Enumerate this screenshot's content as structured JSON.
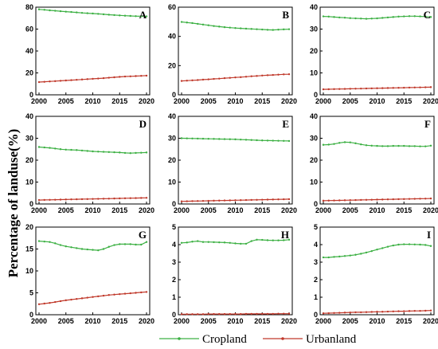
{
  "figure": {
    "ylabel": "Percentage of landuse(%)",
    "legend": [
      {
        "name": "Cropland",
        "color": "#3cb043"
      },
      {
        "name": "Urbanland",
        "color": "#c0392b"
      }
    ]
  },
  "chart_data": [
    {
      "type": "line",
      "panel": "A",
      "x": [
        2000,
        2001,
        2002,
        2003,
        2004,
        2005,
        2006,
        2007,
        2008,
        2009,
        2010,
        2011,
        2012,
        2013,
        2014,
        2015,
        2016,
        2017,
        2018,
        2019,
        2020
      ],
      "xticks": [
        2000,
        2005,
        2010,
        2015,
        2020
      ],
      "ylim": [
        0,
        80
      ],
      "yticks": [
        0,
        20,
        40,
        60,
        80
      ],
      "series": [
        {
          "name": "Cropland",
          "values": [
            78,
            77.6,
            77.1,
            76.7,
            76.3,
            75.9,
            75.6,
            75.2,
            74.8,
            74.5,
            74.2,
            73.9,
            73.5,
            73.1,
            72.8,
            72.5,
            72.2,
            72.0,
            71.8,
            71.7,
            71.6
          ]
        },
        {
          "name": "Urbanland",
          "values": [
            11.6,
            11.9,
            12.2,
            12.5,
            12.8,
            13.1,
            13.4,
            13.7,
            14.0,
            14.3,
            14.6,
            14.9,
            15.2,
            15.6,
            16.0,
            16.4,
            16.7,
            16.9,
            17.1,
            17.3,
            17.5
          ]
        }
      ]
    },
    {
      "type": "line",
      "panel": "B",
      "x": [
        2000,
        2001,
        2002,
        2003,
        2004,
        2005,
        2006,
        2007,
        2008,
        2009,
        2010,
        2011,
        2012,
        2013,
        2014,
        2015,
        2016,
        2017,
        2018,
        2019,
        2020
      ],
      "xticks": [
        2000,
        2005,
        2010,
        2015,
        2020
      ],
      "ylim": [
        0,
        60
      ],
      "yticks": [
        0,
        20,
        40,
        60
      ],
      "series": [
        {
          "name": "Cropland",
          "values": [
            49.9,
            49.5,
            49.1,
            48.6,
            48.1,
            47.6,
            47.1,
            46.7,
            46.3,
            46.0,
            45.7,
            45.5,
            45.3,
            45.1,
            44.9,
            44.7,
            44.5,
            44.4,
            44.6,
            44.8,
            44.9
          ]
        },
        {
          "name": "Urbanland",
          "values": [
            9.5,
            9.7,
            9.9,
            10.1,
            10.4,
            10.6,
            10.9,
            11.1,
            11.4,
            11.6,
            11.9,
            12.1,
            12.4,
            12.7,
            12.9,
            13.2,
            13.4,
            13.6,
            13.8,
            14.0,
            14.1
          ]
        }
      ]
    },
    {
      "type": "line",
      "panel": "C",
      "x": [
        2000,
        2001,
        2002,
        2003,
        2004,
        2005,
        2006,
        2007,
        2008,
        2009,
        2010,
        2011,
        2012,
        2013,
        2014,
        2015,
        2016,
        2017,
        2018,
        2019,
        2020
      ],
      "xticks": [
        2000,
        2005,
        2010,
        2015,
        2020
      ],
      "ylim": [
        0,
        40
      ],
      "yticks": [
        0,
        10,
        20,
        30,
        40
      ],
      "series": [
        {
          "name": "Cropland",
          "values": [
            35.8,
            35.7,
            35.5,
            35.3,
            35.2,
            35.0,
            34.9,
            34.8,
            34.7,
            34.8,
            34.9,
            35.1,
            35.3,
            35.5,
            35.7,
            35.8,
            35.9,
            35.9,
            35.8,
            35.7,
            35.5
          ]
        },
        {
          "name": "Urbanland",
          "values": [
            2.5,
            2.55,
            2.6,
            2.65,
            2.7,
            2.75,
            2.8,
            2.85,
            2.9,
            2.95,
            3.0,
            3.05,
            3.1,
            3.15,
            3.2,
            3.25,
            3.3,
            3.35,
            3.4,
            3.45,
            3.5
          ]
        }
      ]
    },
    {
      "type": "line",
      "panel": "D",
      "x": [
        2000,
        2001,
        2002,
        2003,
        2004,
        2005,
        2006,
        2007,
        2008,
        2009,
        2010,
        2011,
        2012,
        2013,
        2014,
        2015,
        2016,
        2017,
        2018,
        2019,
        2020
      ],
      "xticks": [
        2000,
        2005,
        2010,
        2015,
        2020
      ],
      "ylim": [
        0,
        40
      ],
      "yticks": [
        0,
        10,
        20,
        30,
        40
      ],
      "series": [
        {
          "name": "Cropland",
          "values": [
            26.0,
            25.8,
            25.6,
            25.3,
            25.0,
            24.8,
            24.7,
            24.6,
            24.4,
            24.2,
            24.0,
            23.9,
            23.8,
            23.7,
            23.6,
            23.5,
            23.3,
            23.2,
            23.3,
            23.4,
            23.5
          ]
        },
        {
          "name": "Urbanland",
          "values": [
            1.8,
            1.85,
            1.9,
            1.95,
            2.0,
            2.05,
            2.1,
            2.15,
            2.2,
            2.25,
            2.3,
            2.35,
            2.4,
            2.45,
            2.5,
            2.55,
            2.6,
            2.65,
            2.7,
            2.75,
            2.8
          ]
        }
      ]
    },
    {
      "type": "line",
      "panel": "E",
      "x": [
        2000,
        2001,
        2002,
        2003,
        2004,
        2005,
        2006,
        2007,
        2008,
        2009,
        2010,
        2011,
        2012,
        2013,
        2014,
        2015,
        2016,
        2017,
        2018,
        2019,
        2020
      ],
      "xticks": [
        2000,
        2005,
        2010,
        2015,
        2020
      ],
      "ylim": [
        0,
        40
      ],
      "yticks": [
        0,
        10,
        20,
        30,
        40
      ],
      "series": [
        {
          "name": "Cropland",
          "values": [
            30.0,
            29.95,
            29.9,
            29.85,
            29.8,
            29.75,
            29.7,
            29.65,
            29.6,
            29.55,
            29.5,
            29.4,
            29.3,
            29.2,
            29.1,
            29.0,
            28.95,
            28.9,
            28.85,
            28.8,
            28.75
          ]
        },
        {
          "name": "Urbanland",
          "values": [
            1.2,
            1.25,
            1.3,
            1.35,
            1.4,
            1.45,
            1.5,
            1.55,
            1.6,
            1.65,
            1.7,
            1.75,
            1.8,
            1.85,
            1.9,
            1.95,
            2.0,
            2.05,
            2.1,
            2.15,
            2.2
          ]
        }
      ]
    },
    {
      "type": "line",
      "panel": "F",
      "x": [
        2000,
        2001,
        2002,
        2003,
        2004,
        2005,
        2006,
        2007,
        2008,
        2009,
        2010,
        2011,
        2012,
        2013,
        2014,
        2015,
        2016,
        2017,
        2018,
        2019,
        2020
      ],
      "xticks": [
        2000,
        2005,
        2010,
        2015,
        2020
      ],
      "ylim": [
        0,
        40
      ],
      "yticks": [
        0,
        10,
        20,
        30,
        40
      ],
      "series": [
        {
          "name": "Cropland",
          "values": [
            27.0,
            27.1,
            27.4,
            27.9,
            28.2,
            28.1,
            27.7,
            27.2,
            26.8,
            26.6,
            26.5,
            26.4,
            26.4,
            26.5,
            26.5,
            26.5,
            26.4,
            26.4,
            26.3,
            26.3,
            26.6
          ]
        },
        {
          "name": "Urbanland",
          "values": [
            1.5,
            1.55,
            1.6,
            1.65,
            1.7,
            1.75,
            1.8,
            1.85,
            1.9,
            1.95,
            2.0,
            2.05,
            2.1,
            2.15,
            2.2,
            2.25,
            2.3,
            2.35,
            2.4,
            2.45,
            2.5
          ]
        }
      ]
    },
    {
      "type": "line",
      "panel": "G",
      "x": [
        2000,
        2001,
        2002,
        2003,
        2004,
        2005,
        2006,
        2007,
        2008,
        2009,
        2010,
        2011,
        2012,
        2013,
        2014,
        2015,
        2016,
        2017,
        2018,
        2019,
        2020
      ],
      "xticks": [
        2000,
        2005,
        2010,
        2015,
        2020
      ],
      "ylim": [
        0,
        20
      ],
      "yticks": [
        0,
        5,
        10,
        15,
        20
      ],
      "series": [
        {
          "name": "Cropland",
          "values": [
            16.8,
            16.7,
            16.6,
            16.3,
            15.9,
            15.6,
            15.4,
            15.2,
            15.0,
            14.9,
            14.8,
            14.7,
            15.0,
            15.5,
            15.9,
            16.1,
            16.1,
            16.1,
            16.0,
            16.0,
            16.6
          ]
        },
        {
          "name": "Urbanland",
          "values": [
            2.4,
            2.55,
            2.7,
            2.9,
            3.1,
            3.3,
            3.45,
            3.6,
            3.75,
            3.9,
            4.05,
            4.2,
            4.35,
            4.5,
            4.6,
            4.7,
            4.8,
            4.9,
            5.0,
            5.1,
            5.2
          ]
        }
      ]
    },
    {
      "type": "line",
      "panel": "H",
      "x": [
        2000,
        2001,
        2002,
        2003,
        2004,
        2005,
        2006,
        2007,
        2008,
        2009,
        2010,
        2011,
        2012,
        2013,
        2014,
        2015,
        2016,
        2017,
        2018,
        2019,
        2020
      ],
      "xticks": [
        2000,
        2005,
        2010,
        2015,
        2020
      ],
      "ylim": [
        0,
        5
      ],
      "yticks": [
        0,
        1,
        2,
        3,
        4,
        5
      ],
      "series": [
        {
          "name": "Cropland",
          "values": [
            4.1,
            4.12,
            4.17,
            4.2,
            4.15,
            4.15,
            4.14,
            4.13,
            4.12,
            4.1,
            4.07,
            4.05,
            4.05,
            4.2,
            4.28,
            4.27,
            4.25,
            4.24,
            4.24,
            4.25,
            4.28
          ]
        },
        {
          "name": "Urbanland",
          "values": [
            0.03,
            0.03,
            0.03,
            0.03,
            0.03,
            0.04,
            0.04,
            0.04,
            0.04,
            0.04,
            0.04,
            0.04,
            0.05,
            0.05,
            0.05,
            0.05,
            0.05,
            0.05,
            0.06,
            0.06,
            0.06
          ]
        }
      ]
    },
    {
      "type": "line",
      "panel": "I",
      "x": [
        2000,
        2001,
        2002,
        2003,
        2004,
        2005,
        2006,
        2007,
        2008,
        2009,
        2010,
        2011,
        2012,
        2013,
        2014,
        2015,
        2016,
        2017,
        2018,
        2019,
        2020
      ],
      "xticks": [
        2000,
        2005,
        2010,
        2015,
        2020
      ],
      "ylim": [
        0,
        5
      ],
      "yticks": [
        0,
        1,
        2,
        3,
        4,
        5
      ],
      "series": [
        {
          "name": "Cropland",
          "values": [
            3.27,
            3.27,
            3.3,
            3.32,
            3.35,
            3.38,
            3.42,
            3.48,
            3.55,
            3.63,
            3.72,
            3.8,
            3.88,
            3.95,
            4.0,
            4.02,
            4.02,
            4.01,
            4.0,
            3.98,
            3.92
          ]
        },
        {
          "name": "Urbanland",
          "values": [
            0.08,
            0.09,
            0.1,
            0.11,
            0.12,
            0.13,
            0.14,
            0.14,
            0.15,
            0.16,
            0.17,
            0.17,
            0.18,
            0.19,
            0.2,
            0.2,
            0.21,
            0.22,
            0.22,
            0.23,
            0.24
          ]
        }
      ]
    }
  ]
}
